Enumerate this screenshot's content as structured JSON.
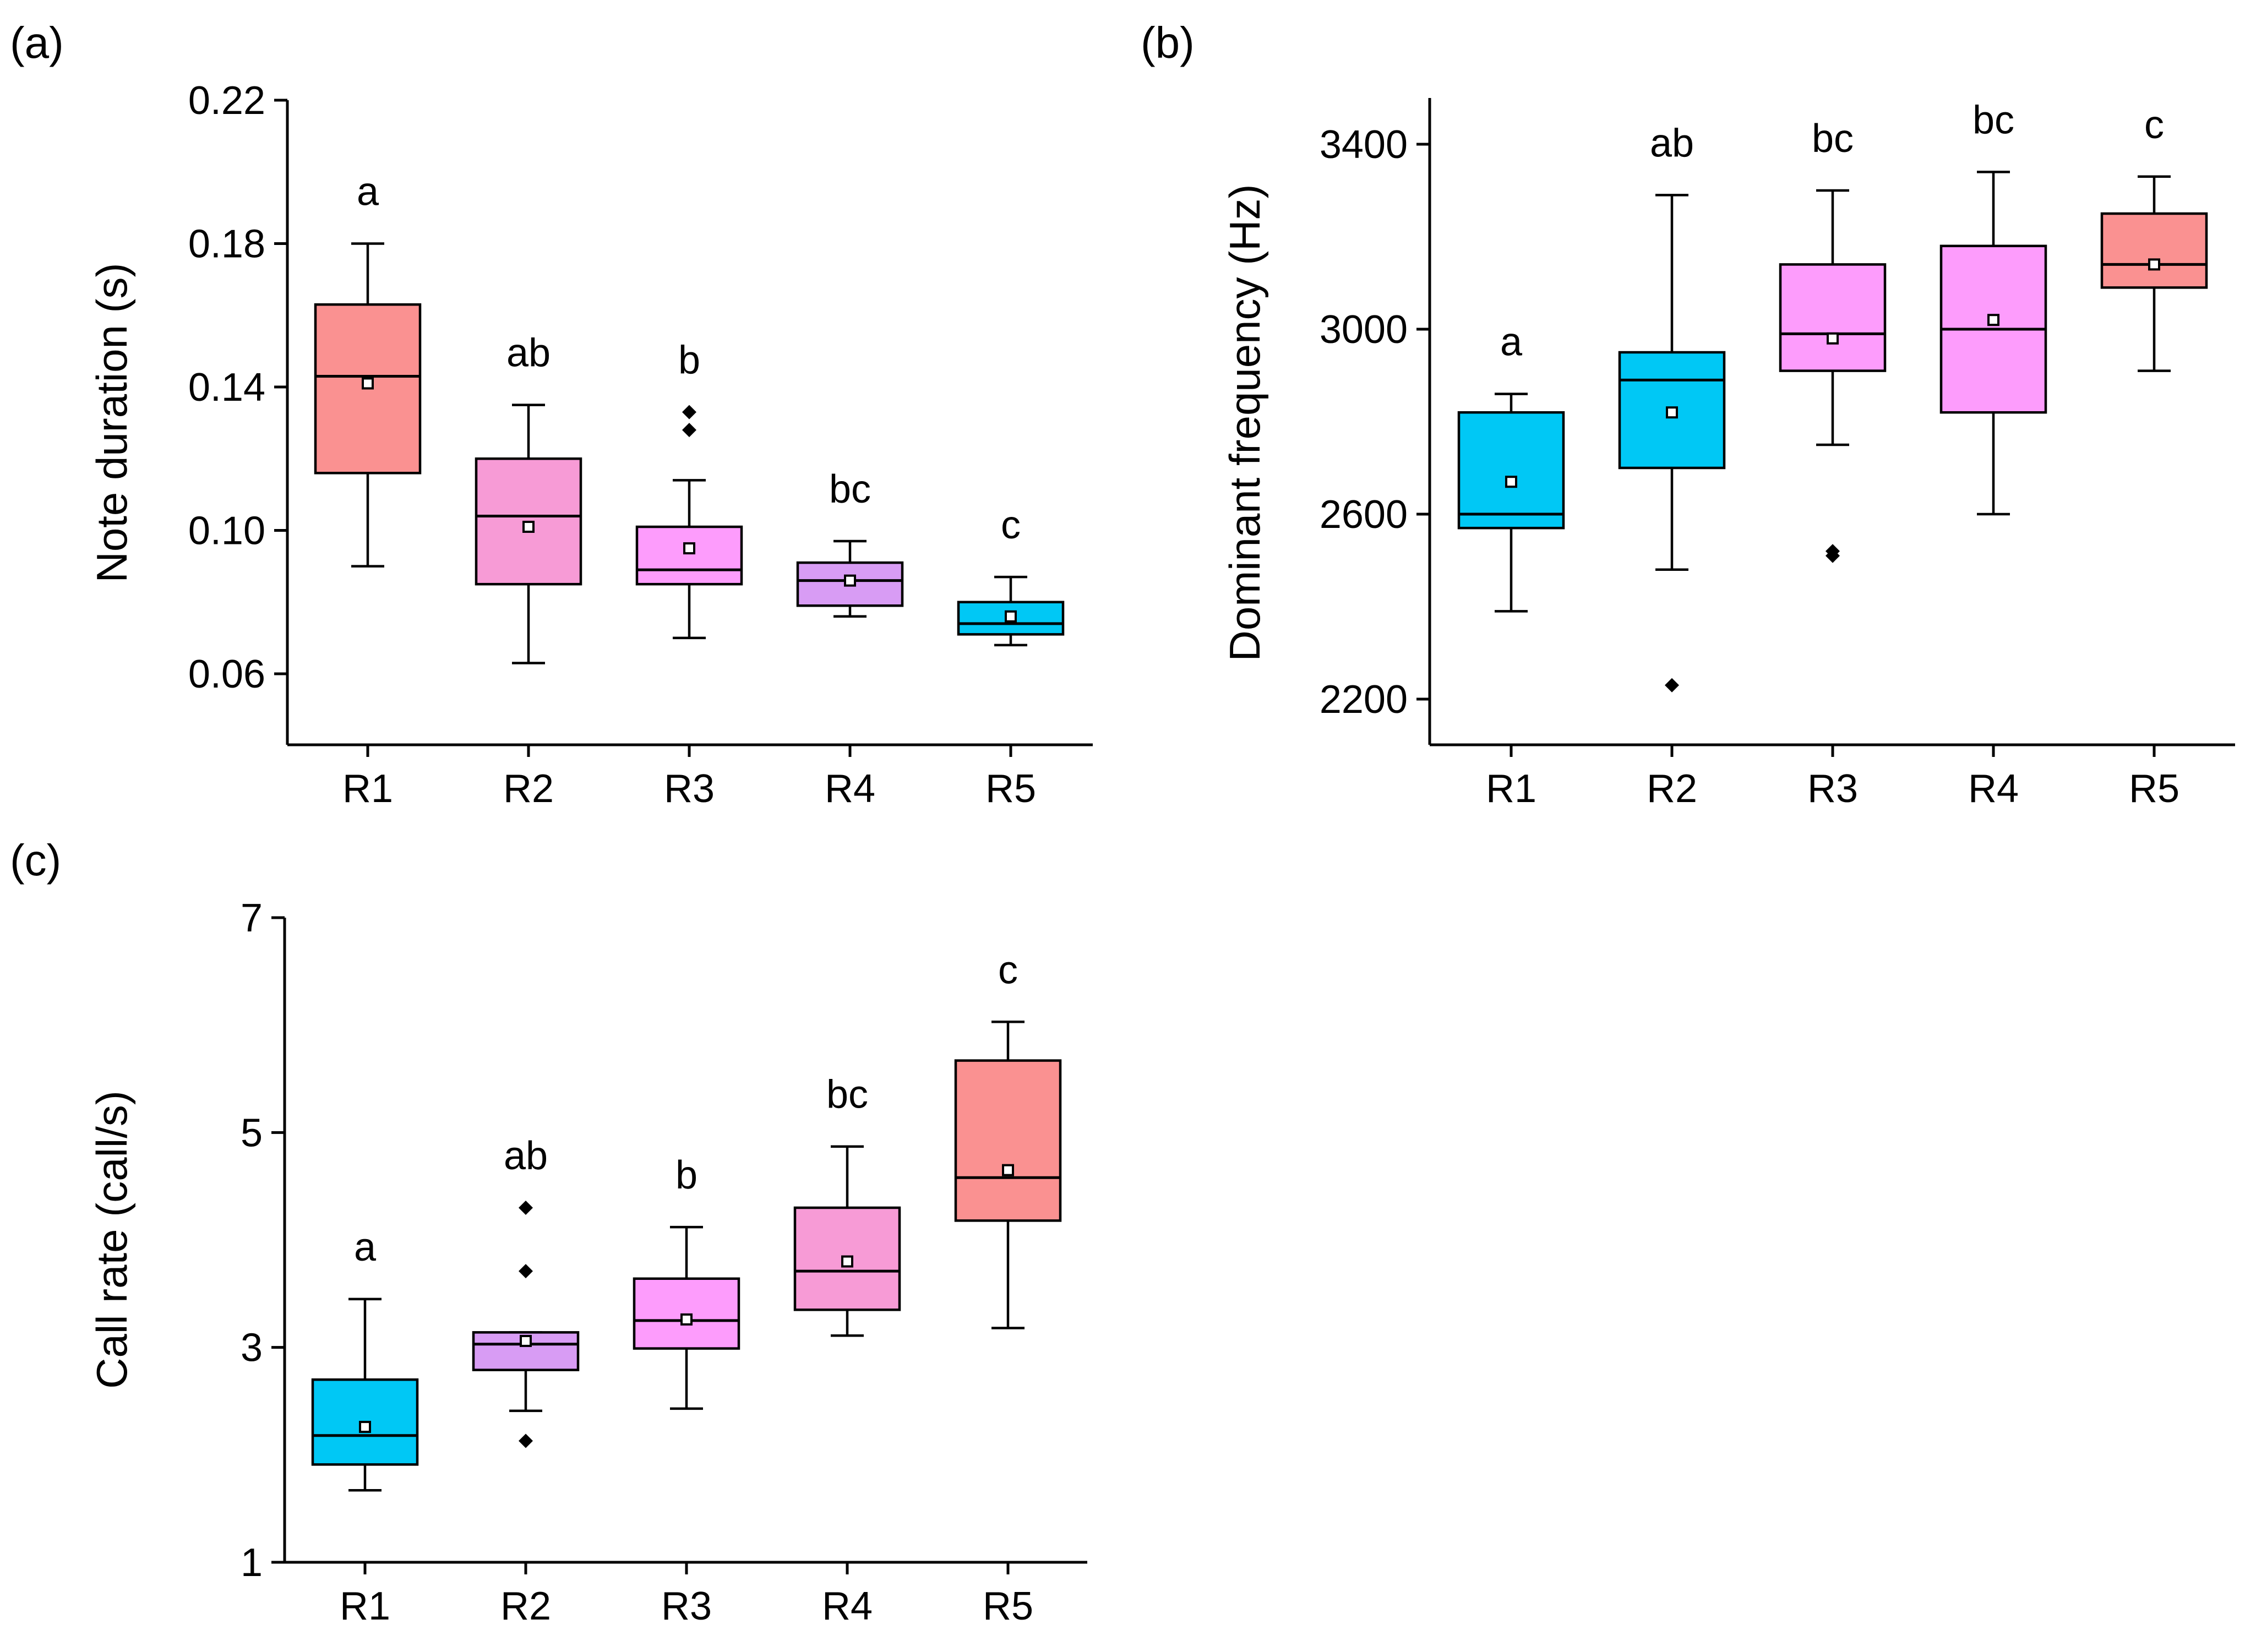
{
  "colors": {
    "salmon": "#FA9191",
    "pink": "#F79BD6",
    "magenta": "#FD9CFC",
    "lavender": "#D89CF4",
    "cyan": "#00C8F5"
  },
  "chart_data": [
    {
      "type": "boxplot",
      "panel_label": "(a)",
      "ylabel": "Note duration (s)",
      "xlabel": "",
      "categories": [
        "R1",
        "R2",
        "R3",
        "R4",
        "R5"
      ],
      "ylim": [
        0.04,
        0.22
      ],
      "yticks": [
        0.06,
        0.1,
        0.14,
        0.18,
        0.22
      ],
      "ytick_labels": [
        "0.06",
        "0.10",
        "0.14",
        "0.18",
        "0.22"
      ],
      "boxes": [
        {
          "category": "R1",
          "min": 0.09,
          "q1": 0.116,
          "median": 0.143,
          "q3": 0.163,
          "max": 0.18,
          "mean": 0.141,
          "outliers": [],
          "letter": "a",
          "color": "salmon"
        },
        {
          "category": "R2",
          "min": 0.063,
          "q1": 0.085,
          "median": 0.104,
          "q3": 0.12,
          "max": 0.135,
          "mean": 0.101,
          "outliers": [],
          "letter": "ab",
          "color": "pink"
        },
        {
          "category": "R3",
          "min": 0.07,
          "q1": 0.085,
          "median": 0.089,
          "q3": 0.101,
          "max": 0.114,
          "mean": 0.095,
          "outliers": [
            0.128,
            0.133
          ],
          "letter": "b",
          "color": "magenta"
        },
        {
          "category": "R4",
          "min": 0.076,
          "q1": 0.079,
          "median": 0.086,
          "q3": 0.091,
          "max": 0.097,
          "mean": 0.086,
          "outliers": [],
          "letter": "bc",
          "color": "lavender"
        },
        {
          "category": "R5",
          "min": 0.068,
          "q1": 0.071,
          "median": 0.074,
          "q3": 0.08,
          "max": 0.087,
          "mean": 0.076,
          "outliers": [],
          "letter": "c",
          "color": "cyan"
        }
      ]
    },
    {
      "type": "boxplot",
      "panel_label": "(b)",
      "ylabel": "Dominant frequency (Hz)",
      "xlabel": "",
      "categories": [
        "R1",
        "R2",
        "R3",
        "R4",
        "R5"
      ],
      "ylim": [
        2100,
        3500
      ],
      "yticks": [
        2200,
        2600,
        3000,
        3400
      ],
      "ytick_labels": [
        "2200",
        "2600",
        "3000",
        "3400"
      ],
      "boxes": [
        {
          "category": "R1",
          "min": 2390,
          "q1": 2570,
          "median": 2600,
          "q3": 2820,
          "max": 2860,
          "mean": 2670,
          "outliers": [],
          "letter": "a",
          "color": "cyan"
        },
        {
          "category": "R2",
          "min": 2480,
          "q1": 2700,
          "median": 2890,
          "q3": 2950,
          "max": 3290,
          "mean": 2820,
          "outliers": [
            2230
          ],
          "letter": "ab",
          "color": "cyan"
        },
        {
          "category": "R3",
          "min": 2750,
          "q1": 2910,
          "median": 2990,
          "q3": 3140,
          "max": 3300,
          "mean": 2980,
          "outliers": [
            2510,
            2520
          ],
          "letter": "bc",
          "color": "magenta"
        },
        {
          "category": "R4",
          "min": 2600,
          "q1": 2820,
          "median": 3000,
          "q3": 3180,
          "max": 3340,
          "mean": 3020,
          "outliers": [],
          "letter": "bc",
          "color": "magenta"
        },
        {
          "category": "R5",
          "min": 2910,
          "q1": 3090,
          "median": 3140,
          "q3": 3250,
          "max": 3330,
          "mean": 3140,
          "outliers": [],
          "letter": "c",
          "color": "salmon"
        }
      ]
    },
    {
      "type": "boxplot",
      "panel_label": "(c)",
      "ylabel": "Call rate (call/s)",
      "xlabel": "",
      "categories": [
        "R1",
        "R2",
        "R3",
        "R4",
        "R5"
      ],
      "ylim": [
        1,
        7
      ],
      "yticks": [
        1,
        3,
        5,
        7
      ],
      "ytick_labels": [
        "1",
        "3",
        "5",
        "7"
      ],
      "boxes": [
        {
          "category": "R1",
          "min": 1.67,
          "q1": 1.91,
          "median": 2.18,
          "q3": 2.7,
          "max": 3.45,
          "mean": 2.26,
          "outliers": [],
          "letter": "a",
          "color": "cyan"
        },
        {
          "category": "R2",
          "min": 2.41,
          "q1": 2.79,
          "median": 3.03,
          "q3": 3.14,
          "max": 3.14,
          "mean": 3.06,
          "outliers": [
            2.13,
            3.71,
            4.3
          ],
          "letter": "ab",
          "color": "lavender"
        },
        {
          "category": "R3",
          "min": 2.43,
          "q1": 2.99,
          "median": 3.25,
          "q3": 3.64,
          "max": 4.12,
          "mean": 3.26,
          "outliers": [],
          "letter": "b",
          "color": "magenta"
        },
        {
          "category": "R4",
          "min": 3.11,
          "q1": 3.35,
          "median": 3.71,
          "q3": 4.3,
          "max": 4.87,
          "mean": 3.8,
          "outliers": [],
          "letter": "bc",
          "color": "pink"
        },
        {
          "category": "R5",
          "min": 3.18,
          "q1": 4.18,
          "median": 4.58,
          "q3": 5.67,
          "max": 6.03,
          "mean": 4.65,
          "outliers": [],
          "letter": "c",
          "color": "salmon"
        }
      ]
    }
  ]
}
